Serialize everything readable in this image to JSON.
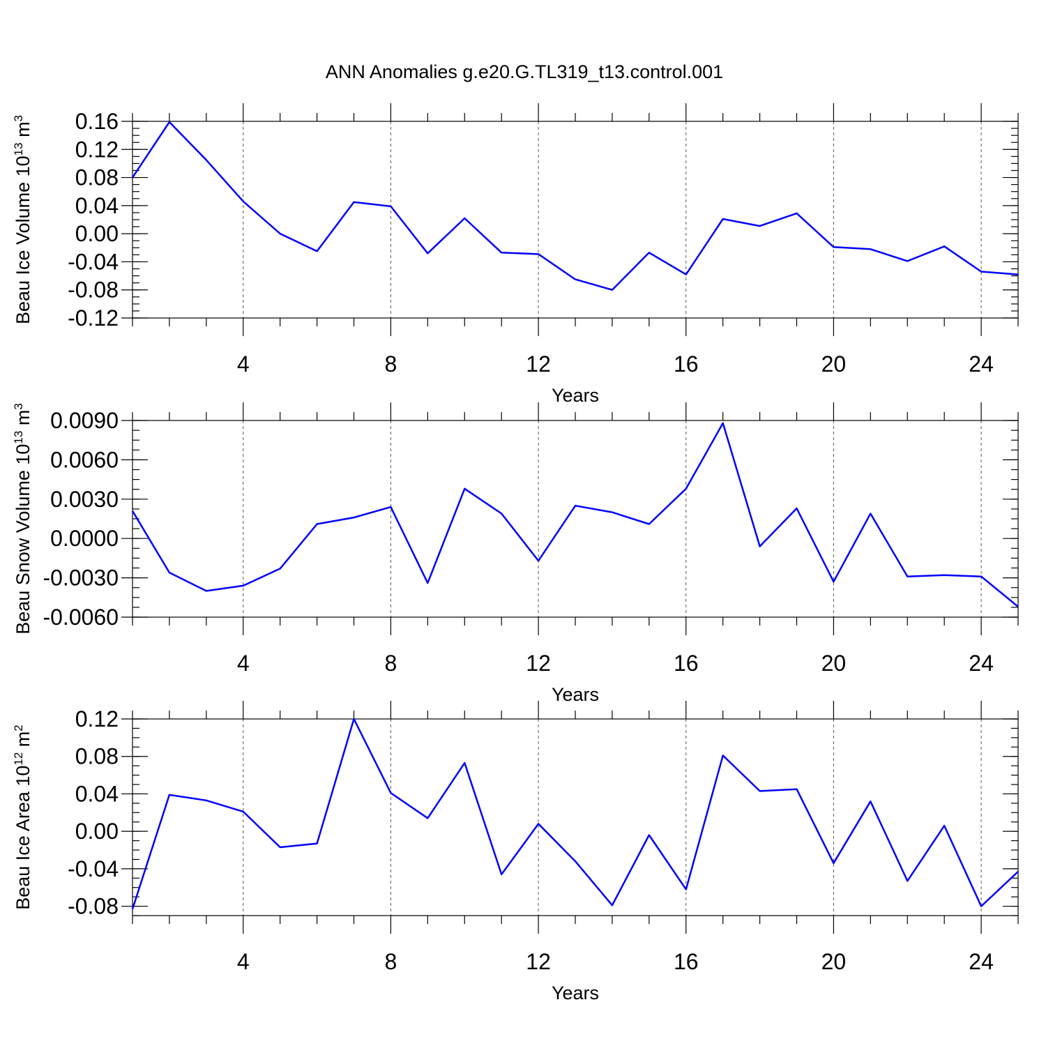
{
  "title": "ANN Anomalies g.e20.G.TL319_t13.control.001",
  "colors": {
    "series": "#0000ff",
    "axes": "#000000",
    "grid": "#555555"
  },
  "chart_data": [
    {
      "type": "line",
      "title": "ANN Anomalies g.e20.G.TL319_t13.control.001",
      "xlabel": "Years",
      "ylabel_text": "Beau Ice Volume 10",
      "ylabel_exp": "13",
      "ylabel_unit": " m",
      "ylabel_unit_exp": "3",
      "xlim": [
        1,
        25
      ],
      "ylim": [
        -0.12,
        0.16
      ],
      "xticks": [
        4,
        8,
        12,
        16,
        20,
        24
      ],
      "xtick_labels": [
        "4",
        "8",
        "12",
        "16",
        "20",
        "24"
      ],
      "yticks": [
        -0.12,
        -0.08,
        -0.04,
        0.0,
        0.04,
        0.08,
        0.12,
        0.16
      ],
      "ytick_labels": [
        "-0.12",
        "-0.08",
        "-0.04",
        "0.00",
        "0.04",
        "0.08",
        "0.12",
        "0.16"
      ],
      "yminor_step": 0.01,
      "grid": "vertical dashed at major x ticks",
      "x": [
        1,
        2,
        3,
        4,
        5,
        6,
        7,
        8,
        9,
        10,
        11,
        12,
        13,
        14,
        15,
        16,
        17,
        18,
        19,
        20,
        21,
        22,
        23,
        24,
        25
      ],
      "values": [
        0.08,
        0.159,
        0.105,
        0.046,
        0.0,
        -0.025,
        0.045,
        0.039,
        -0.028,
        0.022,
        -0.027,
        -0.029,
        -0.065,
        -0.08,
        -0.027,
        -0.058,
        0.021,
        0.011,
        0.029,
        -0.019,
        -0.022,
        -0.039,
        -0.018,
        -0.054,
        -0.058
      ]
    },
    {
      "type": "line",
      "xlabel": "Years",
      "ylabel_text": "Beau Snow Volume 10",
      "ylabel_exp": "13",
      "ylabel_unit": " m",
      "ylabel_unit_exp": "3",
      "xlim": [
        1,
        25
      ],
      "ylim": [
        -0.006,
        0.009
      ],
      "xticks": [
        4,
        8,
        12,
        16,
        20,
        24
      ],
      "xtick_labels": [
        "4",
        "8",
        "12",
        "16",
        "20",
        "24"
      ],
      "yticks": [
        -0.006,
        -0.003,
        0.0,
        0.003,
        0.006,
        0.009
      ],
      "ytick_labels": [
        "-0.0060",
        "-0.0030",
        "0.0000",
        "0.0030",
        "0.0060",
        "0.0090"
      ],
      "yminor_step": 0.00075,
      "grid": "vertical dashed at major x ticks",
      "x": [
        1,
        2,
        3,
        4,
        5,
        6,
        7,
        8,
        9,
        10,
        11,
        12,
        13,
        14,
        15,
        16,
        17,
        18,
        19,
        20,
        21,
        22,
        23,
        24,
        25
      ],
      "values": [
        0.0021,
        -0.0026,
        -0.004,
        -0.0036,
        -0.0023,
        0.0011,
        0.0016,
        0.0024,
        -0.0034,
        0.0038,
        0.0019,
        -0.0017,
        0.0025,
        0.002,
        0.0011,
        0.0038,
        0.0088,
        -0.0006,
        0.0023,
        -0.0033,
        0.0019,
        -0.0029,
        -0.0028,
        -0.0029,
        -0.0052
      ]
    },
    {
      "type": "line",
      "xlabel": "Years",
      "ylabel_text": "Beau Ice Area 10",
      "ylabel_exp": "12",
      "ylabel_unit": " m",
      "ylabel_unit_exp": "2",
      "xlim": [
        1,
        25
      ],
      "ylim": [
        -0.09,
        0.12
      ],
      "xticks": [
        4,
        8,
        12,
        16,
        20,
        24
      ],
      "xtick_labels": [
        "4",
        "8",
        "12",
        "16",
        "20",
        "24"
      ],
      "yticks": [
        -0.08,
        -0.04,
        0.0,
        0.04,
        0.08,
        0.12
      ],
      "ytick_labels": [
        "-0.08",
        "-0.04",
        "0.00",
        "0.04",
        "0.08",
        "0.12"
      ],
      "yminor_step": 0.01,
      "grid": "vertical dashed at major x ticks",
      "x": [
        1,
        2,
        3,
        4,
        5,
        6,
        7,
        8,
        9,
        10,
        11,
        12,
        13,
        14,
        15,
        16,
        17,
        18,
        19,
        20,
        21,
        22,
        23,
        24,
        25
      ],
      "values": [
        -0.083,
        0.039,
        0.033,
        0.021,
        -0.017,
        -0.013,
        0.12,
        0.041,
        0.014,
        0.073,
        -0.046,
        0.008,
        -0.032,
        -0.079,
        -0.004,
        -0.062,
        0.081,
        0.043,
        0.045,
        -0.034,
        0.032,
        -0.053,
        0.006,
        -0.08,
        -0.043
      ]
    }
  ]
}
